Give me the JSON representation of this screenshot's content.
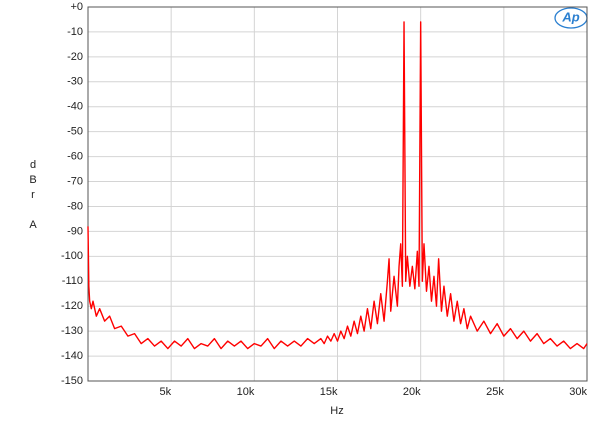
{
  "chart_data": {
    "type": "line",
    "ylabel": "dBr A",
    "xlabel": "Hz",
    "logo": "Ap",
    "color": "#ff0000",
    "grid": true,
    "xlim": [
      0,
      30000
    ],
    "ylim": [
      -150,
      0
    ],
    "xticks": [
      {
        "value": 5000,
        "label": "5k"
      },
      {
        "value": 10000,
        "label": "10k"
      },
      {
        "value": 15000,
        "label": "15k"
      },
      {
        "value": 20000,
        "label": "20k"
      },
      {
        "value": 25000,
        "label": "25k"
      },
      {
        "value": 30000,
        "label": "30k"
      }
    ],
    "yticks": [
      {
        "value": 0,
        "label": "+0"
      },
      -10,
      -20,
      -30,
      -40,
      -50,
      -60,
      -70,
      -80,
      -90,
      -100,
      -110,
      -120,
      -130,
      -140,
      -150
    ],
    "x": [
      0,
      50,
      100,
      200,
      300,
      500,
      700,
      1000,
      1300,
      1600,
      2000,
      2400,
      2800,
      3200,
      3600,
      4000,
      4400,
      4800,
      5200,
      5600,
      6000,
      6400,
      6800,
      7200,
      7600,
      8000,
      8400,
      8800,
      9200,
      9600,
      10000,
      10400,
      10800,
      11200,
      11600,
      12000,
      12400,
      12800,
      13200,
      13600,
      14000,
      14200,
      14400,
      14600,
      14800,
      15000,
      15200,
      15400,
      15600,
      15800,
      16000,
      16200,
      16400,
      16600,
      16800,
      17000,
      17200,
      17400,
      17600,
      17800,
      18000,
      18100,
      18200,
      18400,
      18600,
      18700,
      18800,
      18900,
      19000,
      19100,
      19200,
      19350,
      19500,
      19650,
      19800,
      19900,
      20000,
      20100,
      20200,
      20350,
      20500,
      20650,
      20800,
      20950,
      21080,
      21250,
      21400,
      21600,
      21800,
      22000,
      22200,
      22400,
      22600,
      22800,
      23000,
      23400,
      23800,
      24200,
      24600,
      25000,
      25400,
      25800,
      26200,
      26600,
      27000,
      27400,
      27800,
      28200,
      28600,
      29000,
      29400,
      29800,
      30000
    ],
    "values": [
      -88,
      -112,
      -118,
      -121,
      -118,
      -124,
      -121,
      -126,
      -124,
      -129,
      -128,
      -132,
      -131,
      -135,
      -133,
      -136,
      -134,
      -137,
      -134,
      -136,
      -133,
      -137,
      -135,
      -136,
      -133,
      -137,
      -134,
      -136,
      -134,
      -137,
      -135,
      -136,
      -133,
      -137,
      -134,
      -136,
      -134,
      -136,
      -133,
      -135,
      -133,
      -135,
      -132,
      -134,
      -131,
      -134,
      -130,
      -133,
      -128,
      -132,
      -126,
      -131,
      -124,
      -130,
      -121,
      -129,
      -118,
      -127,
      -115,
      -126,
      -110,
      -101,
      -122,
      -108,
      -120,
      -104,
      -95,
      -112,
      -6,
      -110,
      -100,
      -112,
      -104,
      -113,
      -98,
      -112,
      -6,
      -110,
      -95,
      -114,
      -104,
      -118,
      -108,
      -120,
      -101,
      -122,
      -112,
      -124,
      -115,
      -126,
      -118,
      -127,
      -121,
      -129,
      -124,
      -130,
      -126,
      -131,
      -127,
      -132,
      -129,
      -133,
      -130,
      -134,
      -131,
      -135,
      -133,
      -136,
      -134,
      -137,
      -135,
      -137,
      -135
    ]
  }
}
